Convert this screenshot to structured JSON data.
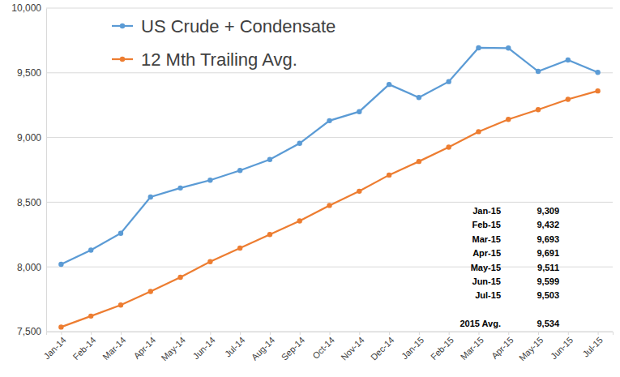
{
  "chart_data": {
    "type": "line",
    "categories": [
      "Jan-14",
      "Feb-14",
      "Mar-14",
      "Apr-14",
      "May-14",
      "Jun-14",
      "Jul-14",
      "Aug-14",
      "Sep-14",
      "Oct-14",
      "Nov-14",
      "Dec-14",
      "Jan-15",
      "Feb-15",
      "Mar-15",
      "Apr-15",
      "May-15",
      "Jun-15",
      "Jul-15"
    ],
    "series": [
      {
        "name": "US Crude + Condensate",
        "color": "#5b9bd5",
        "marker": "circle",
        "values": [
          8020,
          8130,
          8260,
          8540,
          8610,
          8670,
          8745,
          8830,
          8955,
          9130,
          9200,
          9410,
          9309,
          9432,
          9693,
          9691,
          9511,
          9599,
          9503
        ]
      },
      {
        "name": "12 Mth Trailing Avg.",
        "color": "#ed7d31",
        "marker": "circle",
        "values": [
          7535,
          7620,
          7705,
          7810,
          7920,
          8040,
          8145,
          8250,
          8355,
          8475,
          8585,
          8710,
          8815,
          8925,
          9045,
          9140,
          9215,
          9295,
          9360
        ]
      }
    ],
    "ylim": [
      7500,
      10000
    ],
    "yticks": [
      {
        "value": 7500,
        "label": "7,500"
      },
      {
        "value": 8000,
        "label": "8,000"
      },
      {
        "value": 8500,
        "label": "8,500"
      },
      {
        "value": 9000,
        "label": "9,000"
      },
      {
        "value": 9500,
        "label": "9,500"
      },
      {
        "value": 10000,
        "label": "10,000"
      }
    ],
    "grid": true,
    "legend": "top-left",
    "annotation_table": {
      "rows": [
        [
          "Jan-15",
          "9,309"
        ],
        [
          "Feb-15",
          "9,432"
        ],
        [
          "Mar-15",
          "9,693"
        ],
        [
          "Apr-15",
          "9,691"
        ],
        [
          "May-15",
          "9,511"
        ],
        [
          "Jun-15",
          "9,599"
        ],
        [
          "Jul-15",
          "9,503"
        ]
      ],
      "summary": [
        "2015 Avg.",
        "9,534"
      ]
    }
  }
}
